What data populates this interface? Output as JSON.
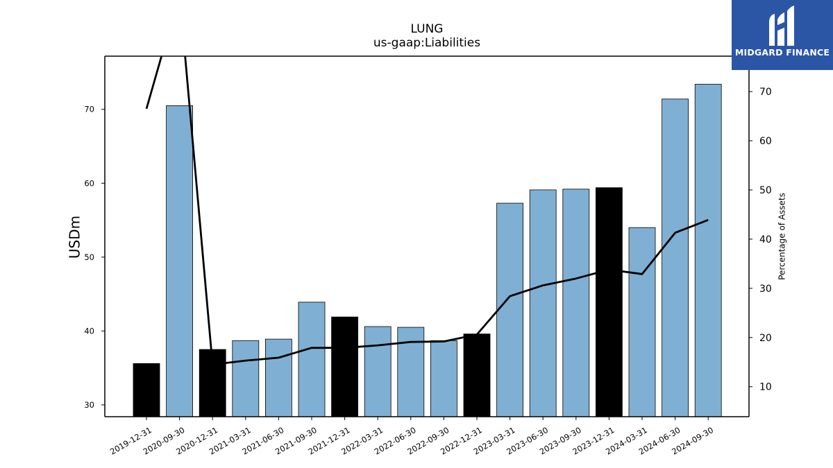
{
  "chart_data": {
    "type": "bar",
    "title": "LUNG",
    "subtitle": "us-gaap:Liabilities",
    "ylabel": "USDm",
    "y2label": "Percentage of Assets",
    "categories": [
      "2019-12-31",
      "2020-09-30",
      "2020-12-31",
      "2021-03-31",
      "2021-06-30",
      "2021-09-30",
      "2021-12-31",
      "2022-03-31",
      "2022-06-30",
      "2022-09-30",
      "2022-12-31",
      "2023-03-31",
      "2023-06-30",
      "2023-09-30",
      "2023-12-31",
      "2024-03-31",
      "2024-06-30",
      "2024-09-30"
    ],
    "series": [
      {
        "type": "bar",
        "values": [
          35.6,
          70.5,
          37.5,
          38.7,
          38.9,
          43.9,
          41.9,
          40.6,
          40.5,
          38.7,
          39.6,
          57.3,
          59.1,
          59.2,
          59.4,
          54.0,
          71.4,
          73.4
        ],
        "highlight": [
          true,
          false,
          true,
          false,
          false,
          false,
          true,
          false,
          false,
          false,
          true,
          false,
          false,
          false,
          true,
          false,
          false,
          false
        ]
      },
      {
        "type": "line",
        "axis": "right",
        "values": [
          66.5,
          90.0,
          14.5,
          15.3,
          15.9,
          17.9,
          17.9,
          18.4,
          19.1,
          19.2,
          20.6,
          28.4,
          30.6,
          32.0,
          33.8,
          32.9,
          41.3,
          43.9
        ]
      }
    ],
    "ylim": [
      28.4,
      77.2
    ],
    "y2lim": [
      3.9,
      77.2
    ],
    "yticks": [
      30,
      40,
      50,
      60,
      70
    ],
    "y2ticks": [
      10,
      20,
      30,
      40,
      50,
      60,
      70
    ],
    "colors": {
      "bar": "#7fb0d3",
      "highlight": "#000000",
      "line": "#000000",
      "edge": "#000000"
    },
    "grid": false
  },
  "logo": {
    "text": "MIDGARD FINANCE",
    "color": "#2b56a6"
  }
}
